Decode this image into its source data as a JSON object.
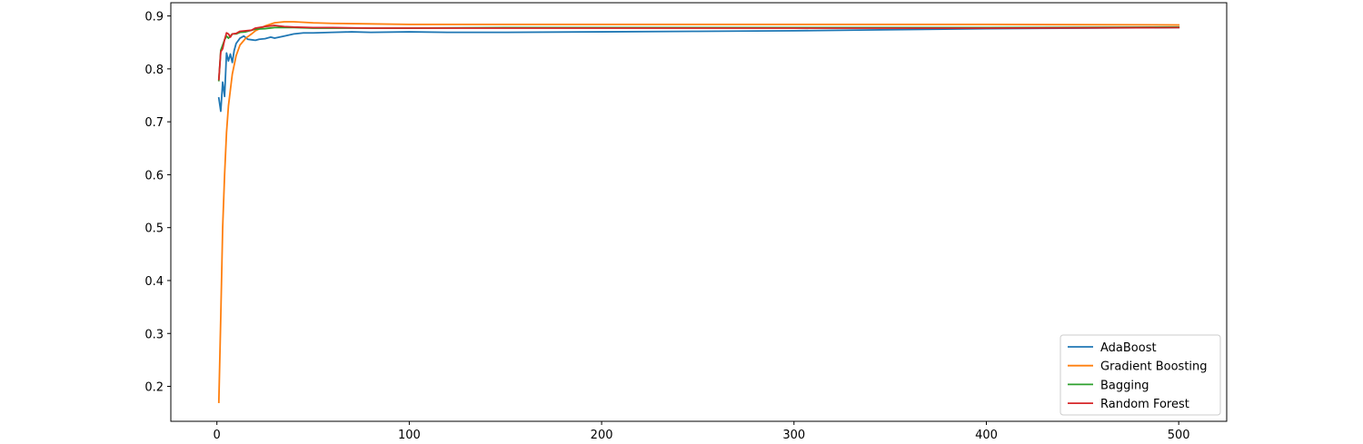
{
  "chart_data": {
    "type": "line",
    "title": "",
    "xlabel": "",
    "ylabel": "",
    "xlim": [
      -23.95,
      524.95
    ],
    "ylim": [
      0.134,
      0.925
    ],
    "xticks": [
      0,
      100,
      200,
      300,
      400,
      500
    ],
    "yticks": [
      0.2,
      0.3,
      0.4,
      0.5,
      0.6,
      0.7,
      0.8,
      0.9
    ],
    "xtick_labels": [
      "0",
      "100",
      "200",
      "300",
      "400",
      "500"
    ],
    "ytick_labels": [
      "0.2",
      "0.3",
      "0.4",
      "0.5",
      "0.6",
      "0.7",
      "0.8",
      "0.9"
    ],
    "grid": false,
    "legend": "lower-right",
    "series": [
      {
        "name": "AdaBoost",
        "color": "#1f77b4",
        "x": [
          1,
          2,
          3,
          4,
          5,
          6,
          7,
          8,
          9,
          10,
          12,
          14,
          16,
          18,
          20,
          22,
          25,
          28,
          30,
          35,
          40,
          45,
          50,
          60,
          70,
          80,
          100,
          120,
          150,
          200,
          250,
          300,
          350,
          400,
          450,
          500
        ],
        "y": [
          0.745,
          0.72,
          0.775,
          0.748,
          0.83,
          0.815,
          0.828,
          0.812,
          0.835,
          0.848,
          0.858,
          0.862,
          0.856,
          0.855,
          0.854,
          0.856,
          0.857,
          0.86,
          0.858,
          0.862,
          0.866,
          0.868,
          0.868,
          0.869,
          0.87,
          0.869,
          0.87,
          0.869,
          0.869,
          0.87,
          0.871,
          0.872,
          0.874,
          0.876,
          0.877,
          0.878
        ]
      },
      {
        "name": "Gradient Boosting",
        "color": "#ff7f0e",
        "x": [
          1,
          2,
          3,
          4,
          5,
          6,
          8,
          10,
          12,
          15,
          18,
          20,
          25,
          30,
          35,
          40,
          50,
          60,
          80,
          100,
          150,
          200,
          300,
          400,
          500
        ],
        "y": [
          0.17,
          0.33,
          0.5,
          0.6,
          0.68,
          0.73,
          0.79,
          0.825,
          0.845,
          0.858,
          0.866,
          0.872,
          0.881,
          0.887,
          0.889,
          0.889,
          0.887,
          0.886,
          0.885,
          0.884,
          0.884,
          0.884,
          0.884,
          0.884,
          0.883
        ]
      },
      {
        "name": "Bagging",
        "color": "#2ca02c",
        "x": [
          1,
          2,
          3,
          4,
          5,
          6,
          8,
          10,
          12,
          15,
          20,
          25,
          30,
          40,
          50,
          60,
          80,
          100,
          150,
          200,
          300,
          400,
          500
        ],
        "y": [
          0.778,
          0.835,
          0.845,
          0.855,
          0.862,
          0.858,
          0.866,
          0.866,
          0.869,
          0.87,
          0.875,
          0.876,
          0.878,
          0.878,
          0.877,
          0.877,
          0.877,
          0.877,
          0.878,
          0.878,
          0.878,
          0.878,
          0.879
        ]
      },
      {
        "name": "Random Forest",
        "color": "#d62728",
        "x": [
          1,
          2,
          3,
          4,
          5,
          6,
          7,
          8,
          10,
          12,
          15,
          18,
          20,
          25,
          30,
          35,
          40,
          50,
          60,
          80,
          100,
          120,
          150,
          200,
          300,
          400,
          500
        ],
        "y": [
          0.78,
          0.832,
          0.838,
          0.855,
          0.868,
          0.866,
          0.86,
          0.866,
          0.867,
          0.871,
          0.872,
          0.873,
          0.877,
          0.88,
          0.882,
          0.88,
          0.879,
          0.878,
          0.878,
          0.877,
          0.877,
          0.877,
          0.877,
          0.877,
          0.877,
          0.877,
          0.878
        ]
      }
    ]
  }
}
